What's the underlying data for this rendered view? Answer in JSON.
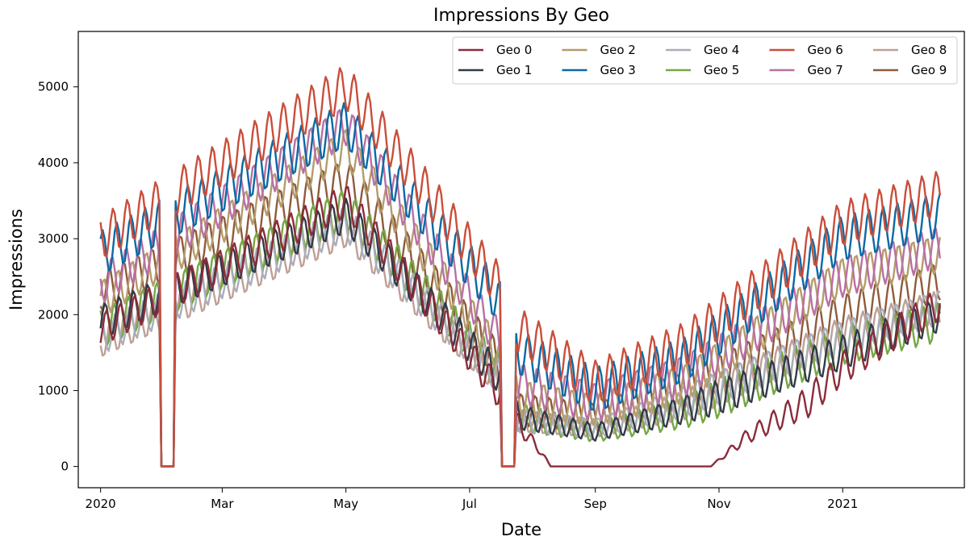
{
  "chart_data": {
    "type": "line",
    "title": "Impressions By Geo",
    "xlabel": "Date",
    "ylabel": "Impressions",
    "x_start": "2020-01-01",
    "x_end": "2021-02-18",
    "xlim": [
      "2019-12-21",
      "2021-03-02"
    ],
    "ylim": [
      -280,
      5730
    ],
    "x_ticks": [
      {
        "date": "2020-01-01",
        "label": "2020"
      },
      {
        "date": "2020-03-01",
        "label": "Mar"
      },
      {
        "date": "2020-05-01",
        "label": "May"
      },
      {
        "date": "2020-07-01",
        "label": "Jul"
      },
      {
        "date": "2020-09-01",
        "label": "Sep"
      },
      {
        "date": "2020-11-01",
        "label": "Nov"
      },
      {
        "date": "2021-01-01",
        "label": "2021"
      }
    ],
    "y_ticks": [
      0,
      1000,
      2000,
      3000,
      4000,
      5000
    ],
    "y_tick_labels": [
      "0",
      "1000",
      "2000",
      "3000",
      "4000",
      "5000"
    ],
    "grid": false,
    "legend_position": "top-right",
    "outages": [
      {
        "start": "2020-01-31",
        "end": "2020-02-06"
      },
      {
        "start": "2020-07-17",
        "end": "2020-07-23"
      }
    ],
    "weekly_cycle_days": 7,
    "series": [
      {
        "name": "Geo 0",
        "color": "#8b2c3a",
        "anchors": [
          [
            "2020-01-01",
            1800
          ],
          [
            "2020-05-01",
            3500
          ],
          [
            "2020-07-15",
            1000
          ],
          [
            "2020-07-25",
            550
          ],
          [
            "2020-08-05",
            200
          ],
          [
            "2020-08-10",
            0
          ],
          [
            "2020-10-28",
            0
          ],
          [
            "2020-11-15",
            400
          ],
          [
            "2020-12-15",
            850
          ],
          [
            "2021-01-01",
            1300
          ],
          [
            "2021-02-18",
            2150
          ]
        ],
        "weekly_amplitude": 220
      },
      {
        "name": "Geo 1",
        "color": "#323a48",
        "anchors": [
          [
            "2020-01-01",
            1900
          ],
          [
            "2020-05-01",
            3300
          ],
          [
            "2020-07-15",
            1200
          ],
          [
            "2020-07-25",
            650
          ],
          [
            "2020-09-01",
            450
          ],
          [
            "2020-10-15",
            750
          ],
          [
            "2021-01-01",
            1500
          ],
          [
            "2021-02-18",
            2000
          ]
        ],
        "weekly_amplitude": 230
      },
      {
        "name": "Geo 2",
        "color": "#b59b6b",
        "anchors": [
          [
            "2020-01-01",
            2200
          ],
          [
            "2020-05-01",
            4200
          ],
          [
            "2020-07-15",
            1500
          ],
          [
            "2020-07-25",
            900
          ],
          [
            "2020-09-01",
            750
          ],
          [
            "2020-10-15",
            1100
          ],
          [
            "2021-01-01",
            2500
          ],
          [
            "2021-02-18",
            2800
          ]
        ],
        "weekly_amplitude": 250
      },
      {
        "name": "Geo 3",
        "color": "#0a69a5",
        "anchors": [
          [
            "2020-01-01",
            2800
          ],
          [
            "2020-05-01",
            4500
          ],
          [
            "2020-07-15",
            2200
          ],
          [
            "2020-07-25",
            1500
          ],
          [
            "2020-09-01",
            1000
          ],
          [
            "2020-10-15",
            1400
          ],
          [
            "2021-01-01",
            3000
          ],
          [
            "2021-02-18",
            3300
          ]
        ],
        "weekly_amplitude": 300
      },
      {
        "name": "Geo 4",
        "color": "#a9aebb",
        "anchors": [
          [
            "2020-01-01",
            1700
          ],
          [
            "2020-05-01",
            3200
          ],
          [
            "2020-07-15",
            1200
          ],
          [
            "2020-07-25",
            600
          ],
          [
            "2020-09-01",
            500
          ],
          [
            "2020-10-15",
            850
          ],
          [
            "2021-01-01",
            1700
          ],
          [
            "2021-02-18",
            2100
          ]
        ],
        "weekly_amplitude": 230
      },
      {
        "name": "Geo 5",
        "color": "#76a743",
        "anchors": [
          [
            "2020-01-01",
            1800
          ],
          [
            "2020-05-01",
            3400
          ],
          [
            "2020-07-15",
            1250
          ],
          [
            "2020-07-25",
            650
          ],
          [
            "2020-09-01",
            450
          ],
          [
            "2020-10-15",
            700
          ],
          [
            "2021-01-01",
            1600
          ],
          [
            "2021-02-18",
            1900
          ]
        ],
        "weekly_amplitude": 260
      },
      {
        "name": "Geo 6",
        "color": "#ca4e3b",
        "anchors": [
          [
            "2020-01-01",
            3000
          ],
          [
            "2020-05-01",
            5000
          ],
          [
            "2020-07-15",
            2400
          ],
          [
            "2020-07-25",
            1800
          ],
          [
            "2020-09-01",
            1100
          ],
          [
            "2020-10-15",
            1600
          ],
          [
            "2021-01-01",
            3200
          ],
          [
            "2021-02-18",
            3600
          ]
        ],
        "weekly_amplitude": 300
      },
      {
        "name": "Geo 7",
        "color": "#b870a5",
        "anchors": [
          [
            "2020-01-01",
            2400
          ],
          [
            "2020-05-01",
            4500
          ],
          [
            "2020-07-15",
            1700
          ],
          [
            "2020-07-25",
            1100
          ],
          [
            "2020-09-01",
            850
          ],
          [
            "2020-10-15",
            1200
          ],
          [
            "2021-01-01",
            2500
          ],
          [
            "2021-02-18",
            2900
          ]
        ],
        "weekly_amplitude": 270
      },
      {
        "name": "Geo 8",
        "color": "#bfa096",
        "anchors": [
          [
            "2020-01-01",
            1650
          ],
          [
            "2020-05-01",
            3100
          ],
          [
            "2020-07-15",
            1150
          ],
          [
            "2020-07-25",
            600
          ],
          [
            "2020-09-01",
            500
          ],
          [
            "2020-10-15",
            800
          ],
          [
            "2021-01-01",
            1750
          ],
          [
            "2021-02-18",
            2100
          ]
        ],
        "weekly_amplitude": 220
      },
      {
        "name": "Geo 9",
        "color": "#8e5b3b",
        "anchors": [
          [
            "2020-01-01",
            2300
          ],
          [
            "2020-05-01",
            3800
          ],
          [
            "2020-07-15",
            1400
          ],
          [
            "2020-07-25",
            750
          ],
          [
            "2020-09-01",
            650
          ],
          [
            "2020-10-15",
            1000
          ],
          [
            "2021-01-01",
            2000
          ],
          [
            "2021-02-18",
            2450
          ]
        ],
        "weekly_amplitude": 260
      }
    ]
  }
}
